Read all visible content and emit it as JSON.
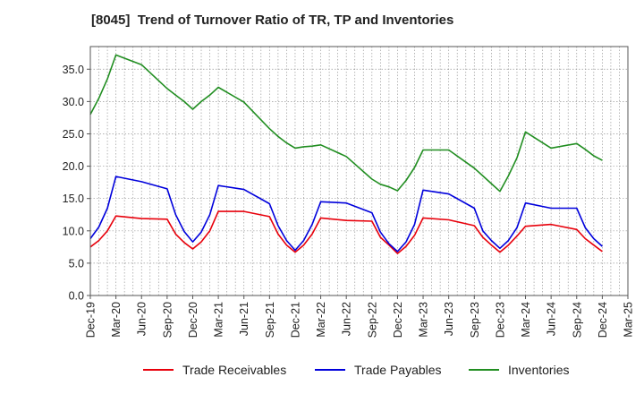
{
  "title": "[8045]  Trend of Turnover Ratio of TR, TP and Inventories",
  "chart_data": {
    "type": "line",
    "title": "[8045]  Trend of Turnover Ratio of TR, TP and Inventories",
    "xlabel": "",
    "ylabel": "",
    "ylim": [
      0,
      38.5
    ],
    "y_ticks": [
      "0.0",
      "5.0",
      "10.0",
      "15.0",
      "20.0",
      "25.0",
      "30.0",
      "35.0"
    ],
    "x_ticks": [
      "Dec-19",
      "Mar-20",
      "Jun-20",
      "Sep-20",
      "Dec-20",
      "Mar-21",
      "Jun-21",
      "Sep-21",
      "Dec-21",
      "Mar-22",
      "Jun-22",
      "Sep-22",
      "Dec-22",
      "Mar-23",
      "Jun-23",
      "Sep-23",
      "Dec-23",
      "Mar-24",
      "Jun-24",
      "Sep-24",
      "Dec-24",
      "Mar-25"
    ],
    "grid": true,
    "legend_position": "bottom",
    "x": [
      "Dec-19",
      "Jan-20",
      "Feb-20",
      "Mar-20",
      "Jun-20",
      "Sep-20",
      "Oct-20",
      "Nov-20",
      "Dec-20",
      "Jan-21",
      "Feb-21",
      "Mar-21",
      "Jun-21",
      "Sep-21",
      "Oct-21",
      "Nov-21",
      "Dec-21",
      "Jan-22",
      "Feb-22",
      "Mar-22",
      "Jun-22",
      "Sep-22",
      "Oct-22",
      "Nov-22",
      "Dec-22",
      "Jan-23",
      "Feb-23",
      "Mar-23",
      "Jun-23",
      "Sep-23",
      "Oct-23",
      "Nov-23",
      "Dec-23",
      "Jan-24",
      "Feb-24",
      "Mar-24",
      "Jun-24",
      "Sep-24",
      "Oct-24",
      "Nov-24",
      "Dec-24"
    ],
    "series": [
      {
        "name": "Trade Receivables",
        "color": "#e8000b",
        "values": [
          7.5,
          8.5,
          10.0,
          12.3,
          11.9,
          11.8,
          9.5,
          8.2,
          7.2,
          8.3,
          10.0,
          13.0,
          13.0,
          12.2,
          9.5,
          7.8,
          6.7,
          7.8,
          9.5,
          12.0,
          11.6,
          11.5,
          9.0,
          7.8,
          6.5,
          7.6,
          9.3,
          12.0,
          11.7,
          10.8,
          9.0,
          7.8,
          6.7,
          7.8,
          9.2,
          10.7,
          11.0,
          10.2,
          8.8,
          7.8,
          6.8
        ]
      },
      {
        "name": "Trade Payables",
        "color": "#0000dc",
        "values": [
          8.8,
          10.6,
          13.5,
          18.4,
          17.6,
          16.5,
          12.5,
          9.9,
          8.3,
          9.8,
          12.5,
          17.0,
          16.4,
          14.2,
          10.8,
          8.5,
          7.0,
          8.5,
          11.0,
          14.5,
          14.3,
          12.8,
          9.8,
          8.0,
          6.8,
          8.3,
          11.0,
          16.3,
          15.7,
          13.5,
          10.0,
          8.5,
          7.3,
          8.5,
          10.5,
          14.3,
          13.5,
          13.5,
          10.5,
          8.8,
          7.6
        ]
      },
      {
        "name": "Inventories",
        "color": "#218e21",
        "values": [
          28.0,
          30.5,
          33.5,
          37.2,
          35.7,
          32.0,
          31.0,
          30.0,
          28.8,
          30.0,
          31.0,
          32.2,
          29.9,
          25.8,
          24.6,
          23.6,
          22.8,
          23.0,
          23.1,
          23.3,
          21.5,
          18.0,
          17.2,
          16.8,
          16.2,
          17.8,
          19.8,
          22.5,
          22.5,
          19.7,
          18.5,
          17.3,
          16.1,
          18.5,
          21.3,
          25.3,
          22.8,
          23.5,
          22.6,
          21.6,
          20.9
        ]
      }
    ]
  }
}
